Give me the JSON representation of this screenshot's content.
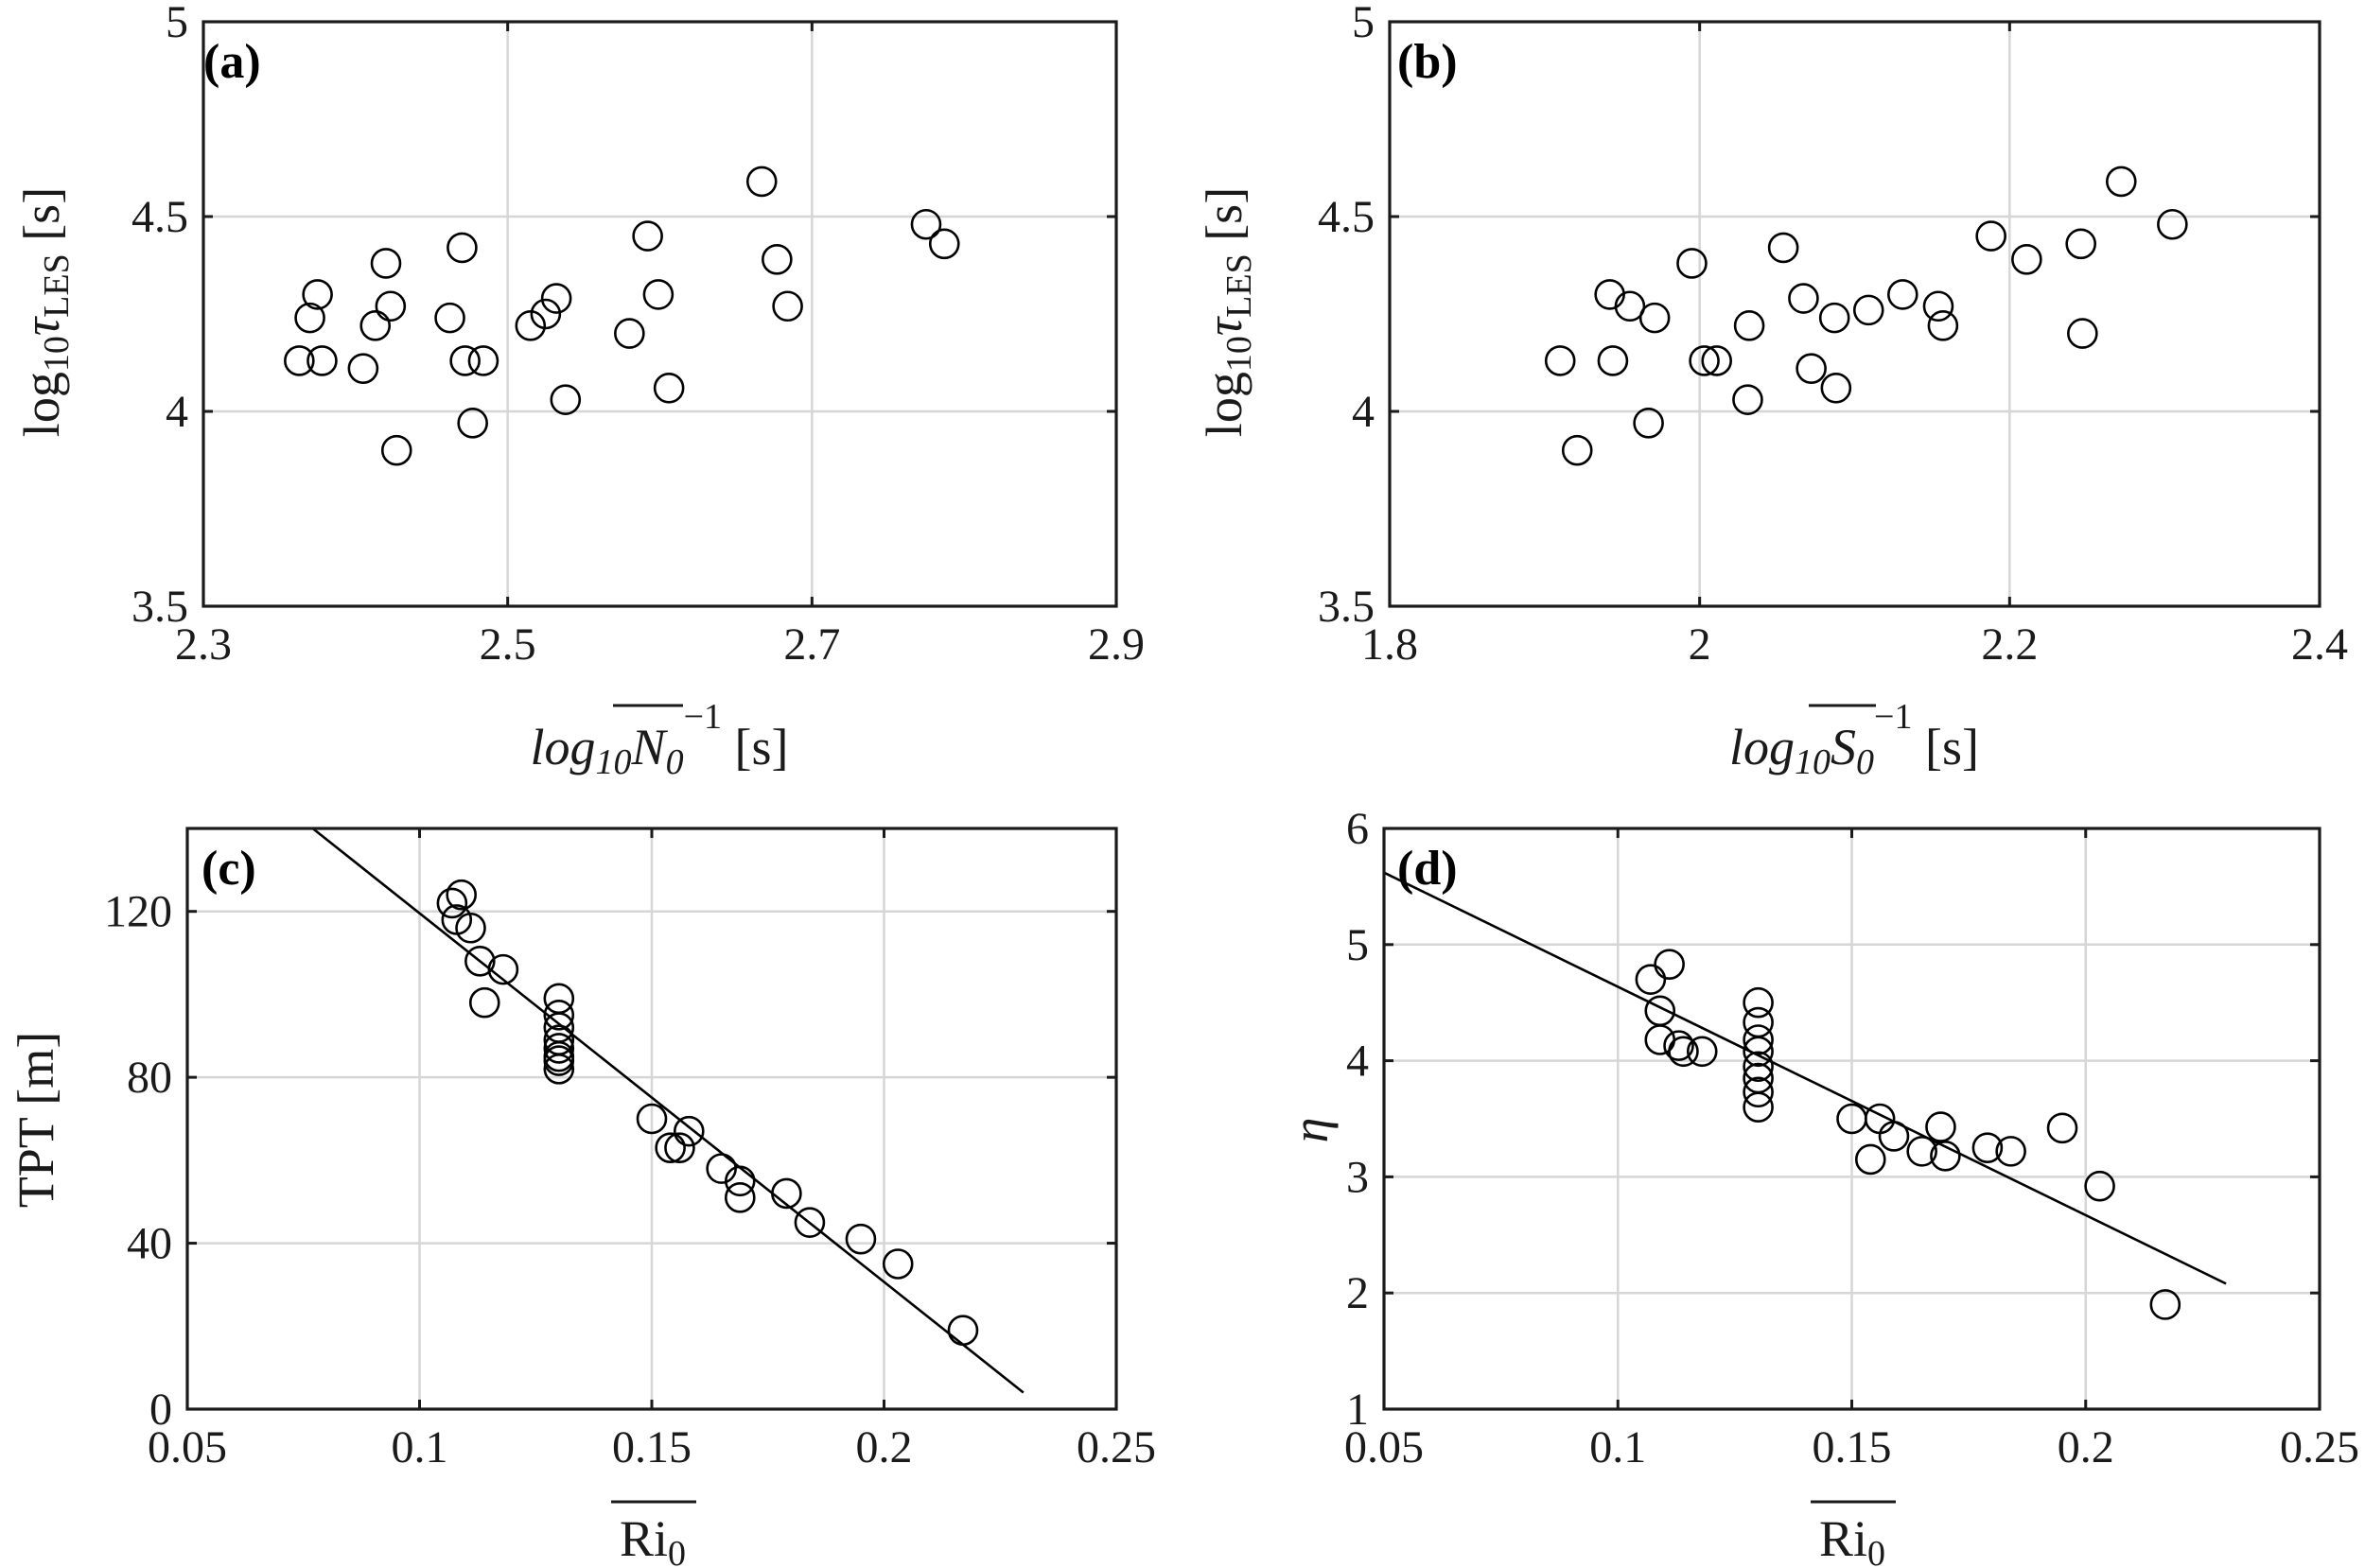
{
  "chart_data": [
    {
      "id": "a",
      "panel_label": "(a)",
      "type": "scatter",
      "xlim": [
        2.3,
        2.9
      ],
      "ylim": [
        3.5,
        5
      ],
      "xticks": [
        "2.3",
        "2.5",
        "2.7",
        "2.9"
      ],
      "yticks": [
        "3.5",
        "4",
        "4.5",
        "5"
      ],
      "grid": true,
      "x": [
        2.363,
        2.37,
        2.375,
        2.378,
        2.405,
        2.413,
        2.42,
        2.423,
        2.427,
        2.462,
        2.47,
        2.472,
        2.477,
        2.484,
        2.515,
        2.525,
        2.532,
        2.538,
        2.58,
        2.592,
        2.599,
        2.606,
        2.667,
        2.677,
        2.684,
        2.775,
        2.787
      ],
      "y": [
        4.13,
        4.24,
        4.3,
        4.13,
        4.11,
        4.22,
        4.38,
        4.27,
        3.9,
        4.24,
        4.42,
        4.13,
        3.97,
        4.13,
        4.22,
        4.25,
        4.29,
        4.03,
        4.2,
        4.45,
        4.3,
        4.06,
        4.59,
        4.39,
        4.27,
        4.48,
        4.43
      ]
    },
    {
      "id": "b",
      "panel_label": "(b)",
      "type": "scatter",
      "xlim": [
        1.8,
        2.4
      ],
      "ylim": [
        3.5,
        5
      ],
      "xticks": [
        "1.8",
        "2",
        "2.2",
        "2.4"
      ],
      "yticks": [
        "3.5",
        "4",
        "4.5",
        "5"
      ],
      "grid": true,
      "x": [
        1.91,
        1.921,
        1.942,
        1.944,
        1.955,
        1.967,
        1.971,
        1.995,
        2.003,
        2.011,
        2.031,
        2.032,
        2.054,
        2.067,
        2.072,
        2.087,
        2.088,
        2.109,
        2.131,
        2.154,
        2.157,
        2.188,
        2.211,
        2.246,
        2.247,
        2.272,
        2.305
      ],
      "y": [
        4.13,
        3.9,
        4.3,
        4.13,
        4.27,
        3.97,
        4.24,
        4.38,
        4.13,
        4.13,
        4.03,
        4.22,
        4.42,
        4.29,
        4.11,
        4.24,
        4.06,
        4.26,
        4.3,
        4.27,
        4.22,
        4.45,
        4.39,
        4.43,
        4.2,
        4.59,
        4.48
      ]
    },
    {
      "id": "c",
      "panel_label": "(c)",
      "type": "scatter",
      "xlim": [
        0.05,
        0.25
      ],
      "ylim": [
        0,
        140
      ],
      "xticks": [
        "0.05",
        "0.1",
        "0.15",
        "0.2",
        "0.25"
      ],
      "yticks": [
        "0",
        "40",
        "80",
        "120"
      ],
      "ytick_values": [
        0,
        40,
        80,
        120
      ],
      "grid": true,
      "x": [
        0.107,
        0.108,
        0.109,
        0.111,
        0.113,
        0.114,
        0.118,
        0.13,
        0.13,
        0.13,
        0.13,
        0.13,
        0.13,
        0.13,
        0.13,
        0.15,
        0.154,
        0.156,
        0.158,
        0.165,
        0.169,
        0.169,
        0.179,
        0.184,
        0.195,
        0.203,
        0.217
      ],
      "y": [
        122,
        118,
        124,
        116,
        108,
        98,
        106,
        99,
        95,
        92,
        89,
        87,
        85,
        84,
        82,
        70,
        63,
        63,
        67,
        58,
        55,
        51,
        52,
        45,
        41,
        35,
        19
      ],
      "fit_line": {
        "x": [
          0.077,
          0.23
        ],
        "y": [
          140,
          4
        ]
      }
    },
    {
      "id": "d",
      "panel_label": "(d)",
      "type": "scatter",
      "xlim": [
        0.05,
        0.25
      ],
      "ylim": [
        1,
        6
      ],
      "xticks": [
        "0.05",
        "0.1",
        "0.15",
        "0.2",
        "0.25"
      ],
      "yticks": [
        "1",
        "2",
        "3",
        "4",
        "5",
        "6"
      ],
      "ytick_values": [
        1,
        2,
        3,
        4,
        5,
        6
      ],
      "grid": true,
      "x": [
        0.107,
        0.109,
        0.109,
        0.111,
        0.113,
        0.114,
        0.118,
        0.13,
        0.13,
        0.13,
        0.13,
        0.13,
        0.13,
        0.13,
        0.13,
        0.15,
        0.154,
        0.156,
        0.159,
        0.165,
        0.169,
        0.17,
        0.179,
        0.184,
        0.195,
        0.203,
        0.217
      ],
      "y": [
        4.7,
        4.43,
        4.18,
        4.83,
        4.13,
        4.08,
        4.08,
        4.5,
        4.33,
        4.18,
        4.08,
        3.95,
        3.85,
        3.73,
        3.6,
        3.5,
        3.15,
        3.5,
        3.35,
        3.22,
        3.43,
        3.18,
        3.25,
        3.22,
        3.42,
        2.92,
        1.9
      ],
      "fit_line": {
        "x": [
          0.05,
          0.23
        ],
        "y": [
          5.62,
          2.08
        ]
      }
    }
  ]
}
